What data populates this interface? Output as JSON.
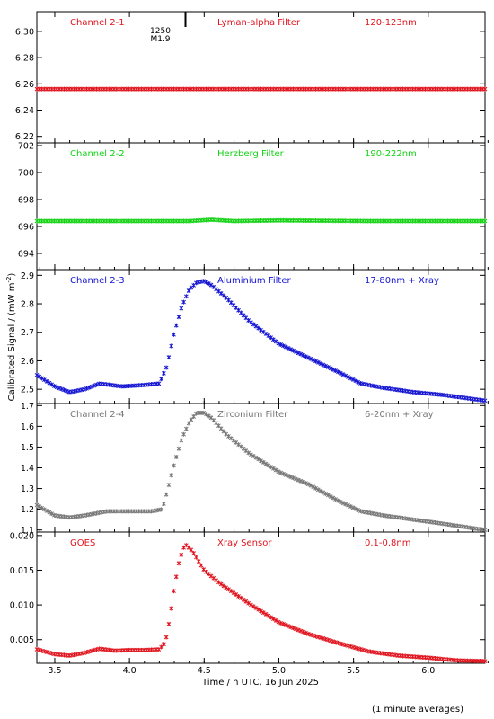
{
  "ylabel": "Calibrated Signal / (mW m",
  "ylabel_sup": "-2",
  "ylabel_tail": ")",
  "xlabel": "Time / h UTC, 16 Jun 2025",
  "footnote": "(1 minute averages)",
  "flare_marker": {
    "time": 4.375,
    "label_top": "1250",
    "label_bottom": "M1.9"
  },
  "chart_data": [
    {
      "type": "scatter",
      "channel": "Channel 2-1",
      "filter": "Lyman-alpha Filter",
      "band": "120-123nm",
      "color": "#e0141e",
      "xlim": [
        3.38,
        6.38
      ],
      "ylim": [
        6.215,
        6.315
      ],
      "yticks": [
        6.22,
        6.24,
        6.26,
        6.28,
        6.3
      ],
      "ytick_labels": [
        "6.22",
        "6.24",
        "6.26",
        "6.28",
        "6.30"
      ],
      "series": [
        {
          "points": [
            [
              3.38,
              6.256
            ],
            [
              3.8,
              6.256
            ],
            [
              4.4,
              6.256
            ],
            [
              5.0,
              6.256
            ],
            [
              5.6,
              6.256
            ],
            [
              6.38,
              6.256
            ]
          ]
        }
      ]
    },
    {
      "type": "scatter",
      "channel": "Channel 2-2",
      "filter": "Herzberg Filter",
      "band": "190-222nm",
      "color": "#14d214",
      "xlim": [
        3.38,
        6.38
      ],
      "ylim": [
        692.8,
        702.2
      ],
      "yticks": [
        694,
        696,
        698,
        700,
        702
      ],
      "ytick_labels": [
        "694",
        "696",
        "698",
        "700",
        "702"
      ],
      "series": [
        {
          "points": [
            [
              3.38,
              696.4
            ],
            [
              4.4,
              696.4
            ],
            [
              4.55,
              696.5
            ],
            [
              4.7,
              696.4
            ],
            [
              5.0,
              696.45
            ],
            [
              5.6,
              696.4
            ],
            [
              6.38,
              696.4
            ]
          ]
        }
      ]
    },
    {
      "type": "scatter",
      "channel": "Channel 2-3",
      "filter": "Aluminium Filter",
      "band": "17-80nm + Xray",
      "color": "#1414d2",
      "xlim": [
        3.38,
        6.38
      ],
      "ylim": [
        2.45,
        2.92
      ],
      "yticks": [
        2.5,
        2.6,
        2.7,
        2.8,
        2.9
      ],
      "ytick_labels": [
        "2.5",
        "2.6",
        "2.7",
        "2.8",
        "2.9"
      ],
      "series": [
        {
          "points": [
            [
              3.38,
              2.55
            ],
            [
              3.5,
              2.51
            ],
            [
              3.6,
              2.49
            ],
            [
              3.7,
              2.5
            ],
            [
              3.8,
              2.52
            ],
            [
              3.95,
              2.51
            ],
            [
              4.1,
              2.515
            ],
            [
              4.2,
              2.52
            ],
            [
              4.25,
              2.58
            ],
            [
              4.3,
              2.7
            ],
            [
              4.35,
              2.79
            ],
            [
              4.4,
              2.85
            ],
            [
              4.45,
              2.875
            ],
            [
              4.5,
              2.88
            ],
            [
              4.55,
              2.865
            ],
            [
              4.65,
              2.82
            ],
            [
              4.8,
              2.74
            ],
            [
              5.0,
              2.66
            ],
            [
              5.2,
              2.61
            ],
            [
              5.4,
              2.56
            ],
            [
              5.55,
              2.52
            ],
            [
              5.7,
              2.505
            ],
            [
              5.9,
              2.49
            ],
            [
              6.1,
              2.48
            ],
            [
              6.38,
              2.46
            ]
          ]
        }
      ]
    },
    {
      "type": "scatter",
      "channel": "Channel 2-4",
      "filter": "Zirconium Filter",
      "band": "6-20nm + Xray",
      "color": "#787878",
      "xlim": [
        3.38,
        6.38
      ],
      "ylim": [
        1.09,
        1.71
      ],
      "yticks": [
        1.1,
        1.2,
        1.3,
        1.4,
        1.5,
        1.6,
        1.7
      ],
      "ytick_labels": [
        "1.1",
        "1.2",
        "1.3",
        "1.4",
        "1.5",
        "1.6",
        "1.7"
      ],
      "series": [
        {
          "points": [
            [
              3.38,
              1.22
            ],
            [
              3.5,
              1.17
            ],
            [
              3.6,
              1.16
            ],
            [
              3.7,
              1.17
            ],
            [
              3.85,
              1.19
            ],
            [
              4.0,
              1.19
            ],
            [
              4.15,
              1.19
            ],
            [
              4.22,
              1.2
            ],
            [
              4.25,
              1.28
            ],
            [
              4.3,
              1.42
            ],
            [
              4.35,
              1.54
            ],
            [
              4.4,
              1.62
            ],
            [
              4.45,
              1.665
            ],
            [
              4.5,
              1.665
            ],
            [
              4.55,
              1.64
            ],
            [
              4.65,
              1.56
            ],
            [
              4.8,
              1.47
            ],
            [
              5.0,
              1.38
            ],
            [
              5.2,
              1.32
            ],
            [
              5.4,
              1.24
            ],
            [
              5.55,
              1.19
            ],
            [
              5.7,
              1.17
            ],
            [
              5.9,
              1.15
            ],
            [
              6.1,
              1.13
            ],
            [
              6.38,
              1.1
            ]
          ]
        }
      ]
    },
    {
      "type": "scatter",
      "channel": "GOES",
      "filter": "Xray Sensor",
      "band": "0.1-0.8nm",
      "color": "#e0141e",
      "xlim": [
        3.38,
        6.38
      ],
      "ylim": [
        0.0016,
        0.0205
      ],
      "yticks": [
        0.005,
        0.01,
        0.015,
        0.02
      ],
      "ytick_labels": [
        "0.005",
        "0.010",
        "0.015",
        "0.020"
      ],
      "series": [
        {
          "points": [
            [
              3.38,
              0.0036
            ],
            [
              3.5,
              0.0029
            ],
            [
              3.6,
              0.0027
            ],
            [
              3.7,
              0.0031
            ],
            [
              3.8,
              0.0037
            ],
            [
              3.9,
              0.0034
            ],
            [
              4.0,
              0.0035
            ],
            [
              4.1,
              0.0035
            ],
            [
              4.2,
              0.0036
            ],
            [
              4.24,
              0.0046
            ],
            [
              4.27,
              0.008
            ],
            [
              4.3,
              0.0125
            ],
            [
              4.33,
              0.016
            ],
            [
              4.36,
              0.0182
            ],
            [
              4.38,
              0.0186
            ],
            [
              4.42,
              0.0178
            ],
            [
              4.5,
              0.015
            ],
            [
              4.6,
              0.0132
            ],
            [
              4.8,
              0.0102
            ],
            [
              5.0,
              0.0075
            ],
            [
              5.2,
              0.0058
            ],
            [
              5.4,
              0.0045
            ],
            [
              5.6,
              0.0033
            ],
            [
              5.8,
              0.0027
            ],
            [
              6.0,
              0.0024
            ],
            [
              6.2,
              0.002
            ],
            [
              6.38,
              0.0019
            ]
          ]
        }
      ]
    }
  ],
  "xaxis": {
    "ticks": [
      3.5,
      4.0,
      4.5,
      5.0,
      5.5,
      6.0
    ],
    "tick_labels": [
      "3.5",
      "4.0",
      "4.5",
      "5.0",
      "5.5",
      "6.0"
    ]
  }
}
